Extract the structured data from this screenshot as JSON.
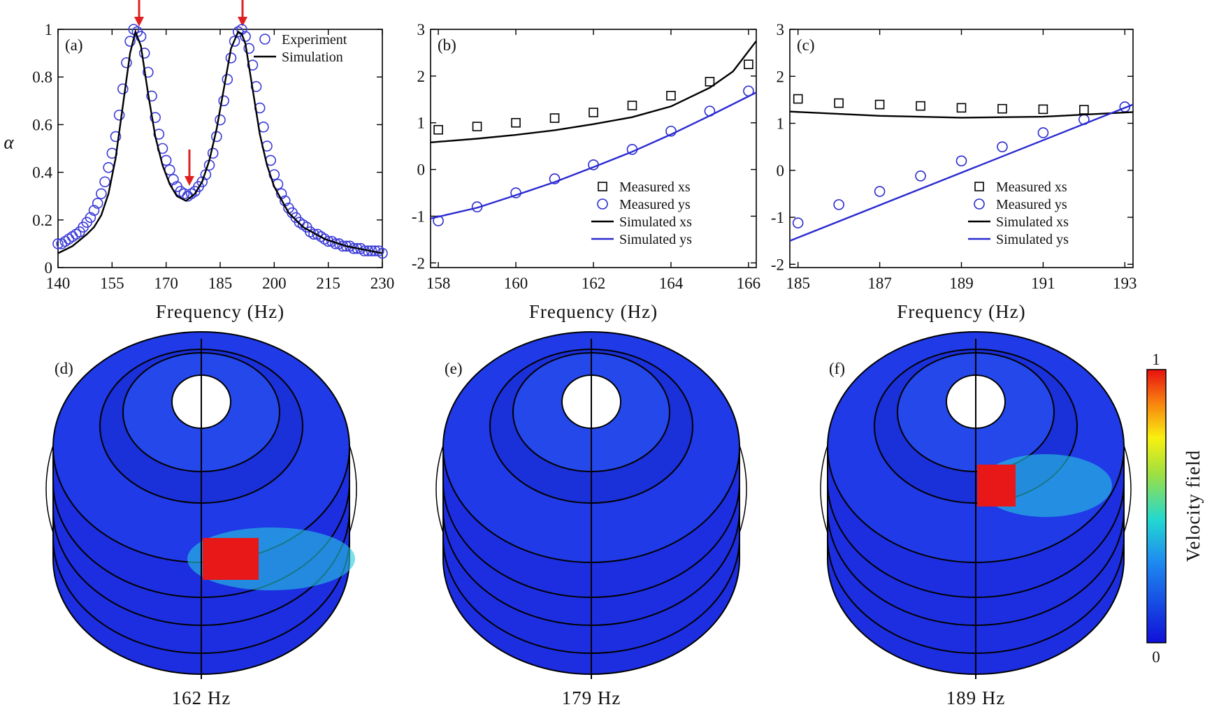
{
  "chart_data": [
    {
      "type": "line",
      "panel_label": "(a)",
      "x_label": "Frequency (Hz)",
      "y_label": "α",
      "xlim": [
        140,
        230
      ],
      "xticks": [
        140,
        155,
        170,
        185,
        200,
        215,
        230
      ],
      "ylim": [
        0,
        1
      ],
      "yticks": [
        0,
        0.2,
        0.4,
        0.6,
        0.8,
        1
      ],
      "legend": "upper right",
      "series": [
        {
          "name": "Experiment",
          "style": "circle",
          "color": "#3a3ad8",
          "x": [
            140,
            141,
            142,
            143,
            144,
            145,
            146,
            147,
            148,
            149,
            150,
            151,
            152,
            153,
            154,
            155,
            156,
            157,
            158,
            159,
            160,
            161,
            162,
            163,
            164,
            165,
            166,
            167,
            168,
            169,
            170,
            171,
            172,
            173,
            174,
            175,
            176,
            177,
            178,
            179,
            180,
            181,
            182,
            183,
            184,
            185,
            186,
            187,
            188,
            189,
            190,
            191,
            192,
            193,
            194,
            195,
            196,
            197,
            198,
            199,
            200,
            201,
            202,
            203,
            204,
            205,
            206,
            207,
            208,
            209,
            210,
            211,
            212,
            213,
            214,
            215,
            216,
            217,
            218,
            219,
            220,
            221,
            222,
            223,
            224,
            225,
            226,
            227,
            228,
            229,
            230
          ],
          "values": [
            0.1,
            0.1,
            0.11,
            0.12,
            0.13,
            0.14,
            0.15,
            0.17,
            0.19,
            0.21,
            0.24,
            0.27,
            0.31,
            0.36,
            0.42,
            0.48,
            0.55,
            0.64,
            0.75,
            0.86,
            0.95,
            1.0,
            0.99,
            0.97,
            0.9,
            0.82,
            0.72,
            0.63,
            0.56,
            0.5,
            0.45,
            0.41,
            0.37,
            0.34,
            0.32,
            0.31,
            0.3,
            0.31,
            0.32,
            0.34,
            0.36,
            0.39,
            0.43,
            0.48,
            0.55,
            0.62,
            0.7,
            0.79,
            0.88,
            0.95,
            0.99,
            1.0,
            0.97,
            0.92,
            0.85,
            0.76,
            0.67,
            0.59,
            0.51,
            0.45,
            0.39,
            0.35,
            0.31,
            0.28,
            0.25,
            0.23,
            0.21,
            0.19,
            0.18,
            0.17,
            0.15,
            0.14,
            0.14,
            0.13,
            0.12,
            0.11,
            0.11,
            0.1,
            0.1,
            0.09,
            0.09,
            0.09,
            0.08,
            0.08,
            0.08,
            0.07,
            0.07,
            0.07,
            0.07,
            0.07,
            0.06
          ]
        },
        {
          "name": "Simulation",
          "style": "line",
          "color": "#000000",
          "x": [
            140,
            144,
            148,
            150,
            152,
            154,
            156,
            158,
            160,
            161.5,
            163,
            165,
            167,
            169,
            171,
            173,
            175.5,
            178,
            180,
            182,
            184,
            186,
            188,
            190,
            191,
            192,
            194,
            196,
            198,
            200,
            204,
            208,
            214,
            220,
            230
          ],
          "values": [
            0.06,
            0.09,
            0.14,
            0.17,
            0.22,
            0.31,
            0.46,
            0.68,
            0.9,
            0.99,
            0.93,
            0.73,
            0.55,
            0.43,
            0.35,
            0.3,
            0.28,
            0.31,
            0.36,
            0.45,
            0.58,
            0.75,
            0.92,
            0.99,
            0.98,
            0.94,
            0.75,
            0.56,
            0.43,
            0.34,
            0.23,
            0.17,
            0.12,
            0.09,
            0.06
          ]
        }
      ]
    },
    {
      "type": "line",
      "panel_label": "(b)",
      "x_label": "Frequency (Hz)",
      "xlim": [
        157.8,
        166.2
      ],
      "xticks": [
        158,
        160,
        162,
        164,
        166
      ],
      "ylim": [
        -2.1,
        3
      ],
      "yticks": [
        -2,
        -1,
        0,
        1,
        2,
        3
      ],
      "legend": "lower right",
      "series": [
        {
          "name": "Measured xs",
          "style": "square",
          "color": "#000000",
          "x": [
            158,
            159,
            160,
            161,
            162,
            163,
            164,
            165,
            166
          ],
          "values": [
            0.85,
            0.92,
            1.0,
            1.1,
            1.22,
            1.37,
            1.58,
            1.88,
            2.25
          ]
        },
        {
          "name": "Measured ys",
          "style": "circle",
          "color": "#2a2ad0",
          "x": [
            158,
            159,
            160,
            161,
            162,
            163,
            164,
            165,
            166
          ],
          "values": [
            -1.1,
            -0.8,
            -0.5,
            -0.2,
            0.1,
            0.43,
            0.82,
            1.25,
            1.68
          ]
        },
        {
          "name": "Simulated xs",
          "style": "line",
          "color": "#000000",
          "x": [
            157.8,
            159,
            160,
            161,
            162,
            163,
            164,
            165,
            165.6,
            166.2
          ],
          "values": [
            0.58,
            0.66,
            0.74,
            0.84,
            0.97,
            1.12,
            1.35,
            1.75,
            2.1,
            2.75
          ]
        },
        {
          "name": "Simulated ys",
          "style": "line",
          "color": "#2a2ad0",
          "x": [
            157.8,
            159,
            160,
            161,
            162,
            163,
            164,
            165,
            166.2
          ],
          "values": [
            -1.05,
            -0.82,
            -0.55,
            -0.27,
            0.05,
            0.38,
            0.75,
            1.15,
            1.65
          ]
        }
      ]
    },
    {
      "type": "line",
      "panel_label": "(c)",
      "x_label": "Frequency (Hz)",
      "xlim": [
        184.8,
        193.2
      ],
      "xticks": [
        185,
        187,
        189,
        191,
        193
      ],
      "ylim": [
        -2.07,
        3
      ],
      "yticks": [
        -2,
        -1,
        0,
        1,
        2,
        3
      ],
      "legend": "lower right",
      "series": [
        {
          "name": "Measured xs",
          "style": "square",
          "color": "#000000",
          "x": [
            185,
            186,
            187,
            188,
            189,
            190,
            191,
            192
          ],
          "values": [
            1.52,
            1.43,
            1.4,
            1.37,
            1.33,
            1.31,
            1.3,
            1.29
          ]
        },
        {
          "name": "Measured ys",
          "style": "circle",
          "color": "#2a2ad0",
          "x": [
            185,
            186,
            187,
            188,
            189,
            190,
            191,
            192,
            193
          ],
          "values": [
            -1.12,
            -0.73,
            -0.45,
            -0.12,
            0.2,
            0.5,
            0.8,
            1.08,
            1.35
          ]
        },
        {
          "name": "Simulated xs",
          "style": "line",
          "color": "#000000",
          "x": [
            184.8,
            187,
            189,
            191,
            193.2
          ],
          "values": [
            1.25,
            1.16,
            1.12,
            1.14,
            1.24
          ]
        },
        {
          "name": "Simulated ys",
          "style": "line",
          "color": "#2a2ad0",
          "x": [
            184.8,
            193.2
          ],
          "values": [
            -1.5,
            1.4
          ]
        }
      ]
    }
  ],
  "field_maps": {
    "panels": [
      {
        "label": "(d)",
        "caption": "162 Hz"
      },
      {
        "label": "(e)",
        "caption": "179 Hz"
      },
      {
        "label": "(f)",
        "caption": "189 Hz"
      }
    ],
    "colorbar": {
      "title": "Velocity field",
      "max": 1,
      "min": 0
    }
  }
}
